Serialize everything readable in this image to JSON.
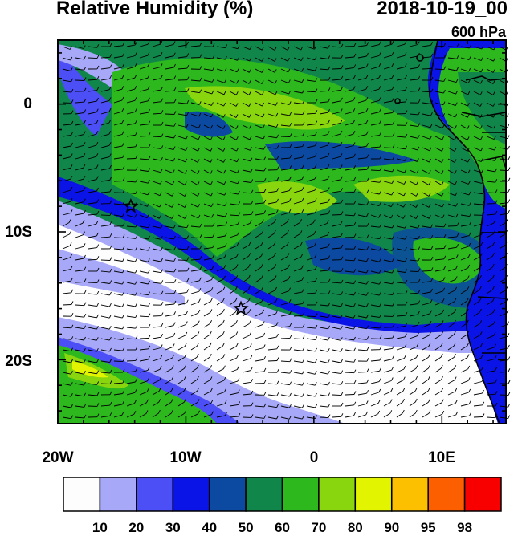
{
  "header": {
    "title": "Relative Humidity (%)",
    "datetime": "2018-10-19_00",
    "level": "600 hPa"
  },
  "axes": {
    "lat_labels": [
      "0",
      "10S",
      "20S"
    ],
    "lon_labels": [
      "20W",
      "10W",
      "0",
      "10E"
    ]
  },
  "colorbar": {
    "labels": [
      "10",
      "20",
      "30",
      "40",
      "50",
      "60",
      "70",
      "80",
      "90",
      "95",
      "98"
    ],
    "colors": [
      "#fdfdfd",
      "#a7a8f7",
      "#4c4ef6",
      "#0a14e6",
      "#0b4aa0",
      "#10864a",
      "#2db81e",
      "#8ad60e",
      "#e2f400",
      "#fcc000",
      "#fc5f00",
      "#f80000"
    ]
  },
  "markers": [
    {
      "name": "star-1",
      "lat": -8,
      "lon": -14.3
    },
    {
      "name": "star-2",
      "lat": -16,
      "lon": -5.7
    }
  ]
}
